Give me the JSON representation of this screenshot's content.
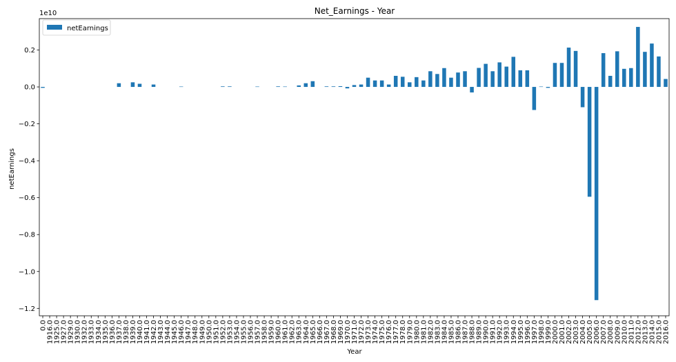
{
  "chart_data": {
    "type": "bar",
    "title": "Net_Earnings - Year",
    "xlabel": "Year",
    "ylabel": "netEarnings",
    "y_offset_label": "1e10",
    "y_scale": 10000000000,
    "ylim": [
      -1.24,
      0.37
    ],
    "yticks": [
      -1.2,
      -1.0,
      -0.8,
      -0.6,
      -0.4,
      -0.2,
      0.0,
      0.2
    ],
    "ytick_labels": [
      "−1.2",
      "−1.0",
      "−0.8",
      "−0.6",
      "−0.4",
      "−0.2",
      "0.0",
      "0.2"
    ],
    "legend": "top-left",
    "grid": false,
    "color": "#1f77b4",
    "categories": [
      "0.0",
      "1916.0",
      "1925.0",
      "1927.0",
      "1929.0",
      "1930.0",
      "1932.0",
      "1933.0",
      "1934.0",
      "1935.0",
      "1936.0",
      "1937.0",
      "1938.0",
      "1939.0",
      "1940.0",
      "1941.0",
      "1942.0",
      "1943.0",
      "1944.0",
      "1945.0",
      "1946.0",
      "1947.0",
      "1948.0",
      "1949.0",
      "1950.0",
      "1951.0",
      "1952.0",
      "1953.0",
      "1954.0",
      "1955.0",
      "1956.0",
      "1957.0",
      "1958.0",
      "1959.0",
      "1960.0",
      "1961.0",
      "1962.0",
      "1963.0",
      "1964.0",
      "1965.0",
      "1966.0",
      "1967.0",
      "1968.0",
      "1969.0",
      "1970.0",
      "1971.0",
      "1972.0",
      "1973.0",
      "1974.0",
      "1975.0",
      "1976.0",
      "1977.0",
      "1978.0",
      "1979.0",
      "1980.0",
      "1981.0",
      "1982.0",
      "1983.0",
      "1984.0",
      "1985.0",
      "1986.0",
      "1987.0",
      "1988.0",
      "1989.0",
      "1990.0",
      "1991.0",
      "1992.0",
      "1993.0",
      "1994.0",
      "1995.0",
      "1996.0",
      "1997.0",
      "1998.0",
      "1999.0",
      "2000.0",
      "2001.0",
      "2002.0",
      "2003.0",
      "2004.0",
      "2005.0",
      "2006.0",
      "2007.0",
      "2008.0",
      "2009.0",
      "2010.0",
      "2011.0",
      "2012.0",
      "2013.0",
      "2014.0",
      "2015.0",
      "2016.0"
    ],
    "series": [
      {
        "name": "netEarnings",
        "values": [
          -0.005,
          0,
          0,
          0,
          0,
          0,
          0,
          0,
          0,
          0,
          0,
          0.02,
          0,
          0.025,
          0.017,
          0,
          0.013,
          0,
          0,
          0,
          0.002,
          0,
          0,
          0,
          0,
          0,
          0.003,
          0.003,
          0,
          0,
          0,
          0.002,
          0,
          0,
          0.003,
          0.002,
          0,
          0.008,
          0.02,
          0.031,
          0,
          0.003,
          0.003,
          0.004,
          -0.008,
          0.01,
          0.013,
          0.05,
          0.035,
          0.035,
          0.013,
          0.06,
          0.055,
          0.025,
          0.053,
          0.035,
          0.085,
          0.07,
          0.102,
          0.05,
          0.078,
          0.085,
          -0.03,
          0.103,
          0.125,
          0.085,
          0.133,
          0.11,
          0.163,
          0.09,
          0.09,
          -0.125,
          0.002,
          -0.005,
          0.13,
          0.13,
          0.213,
          0.195,
          -0.11,
          -0.595,
          -1.155,
          0.183,
          0.06,
          0.193,
          0.098,
          0.102,
          0.325,
          0.19,
          0.235,
          0.165,
          0.043
        ]
      }
    ]
  }
}
